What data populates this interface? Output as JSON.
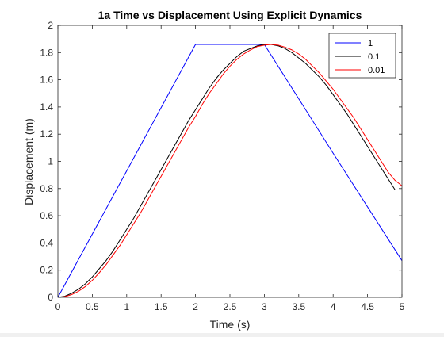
{
  "chart_data": {
    "type": "line",
    "title": "1a Time vs Displacement Using Explicit Dynamics",
    "xlabel": "Time (s)",
    "ylabel": "Displacement (m)",
    "xlim": [
      0,
      5
    ],
    "ylim": [
      0,
      2
    ],
    "xticks": [
      "0",
      "0.5",
      "1",
      "1.5",
      "2",
      "2.5",
      "3",
      "3.5",
      "4",
      "4.5",
      "5"
    ],
    "yticks": [
      "0",
      "0.2",
      "0.4",
      "0.6",
      "0.8",
      "1",
      "1.2",
      "1.4",
      "1.6",
      "1.8",
      "2"
    ],
    "grid": false,
    "box": true,
    "legend_position": "top-right",
    "series": [
      {
        "name": "1",
        "color": "#0000ff",
        "x": [
          0,
          1,
          2,
          3,
          4,
          5
        ],
        "y": [
          0,
          0.93,
          1.86,
          1.86,
          1.06,
          0.27
        ]
      },
      {
        "name": "0.1",
        "color": "#000000",
        "x": [
          0,
          0.1,
          0.2,
          0.3,
          0.4,
          0.5,
          0.6,
          0.7,
          0.8,
          0.9,
          1.0,
          1.1,
          1.2,
          1.3,
          1.4,
          1.5,
          1.6,
          1.7,
          1.8,
          1.9,
          2.0,
          2.1,
          2.2,
          2.3,
          2.4,
          2.5,
          2.6,
          2.7,
          2.8,
          2.9,
          3.0,
          3.1,
          3.2,
          3.3,
          3.4,
          3.5,
          3.6,
          3.7,
          3.8,
          3.9,
          4.0,
          4.1,
          4.2,
          4.3,
          4.4,
          4.5,
          4.6,
          4.7,
          4.8,
          4.9,
          5.0
        ],
        "y": [
          0,
          0.008,
          0.03,
          0.06,
          0.1,
          0.15,
          0.21,
          0.27,
          0.34,
          0.42,
          0.5,
          0.58,
          0.67,
          0.76,
          0.85,
          0.94,
          1.03,
          1.12,
          1.21,
          1.3,
          1.38,
          1.46,
          1.54,
          1.61,
          1.67,
          1.72,
          1.77,
          1.81,
          1.83,
          1.85,
          1.86,
          1.86,
          1.85,
          1.83,
          1.8,
          1.76,
          1.72,
          1.67,
          1.62,
          1.56,
          1.49,
          1.42,
          1.35,
          1.27,
          1.19,
          1.11,
          1.03,
          0.95,
          0.87,
          0.79,
          0.79
        ]
      },
      {
        "name": "0.01",
        "color": "#ff0000",
        "x": [
          0,
          0.1,
          0.2,
          0.3,
          0.4,
          0.5,
          0.6,
          0.7,
          0.8,
          0.9,
          1.0,
          1.1,
          1.2,
          1.3,
          1.4,
          1.5,
          1.6,
          1.7,
          1.8,
          1.9,
          2.0,
          2.1,
          2.2,
          2.3,
          2.4,
          2.5,
          2.6,
          2.7,
          2.8,
          2.9,
          3.0,
          3.1,
          3.2,
          3.3,
          3.4,
          3.5,
          3.6,
          3.7,
          3.8,
          3.9,
          4.0,
          4.1,
          4.2,
          4.3,
          4.4,
          4.5,
          4.6,
          4.7,
          4.8,
          4.9,
          5.0
        ],
        "y": [
          0,
          0.005,
          0.02,
          0.045,
          0.08,
          0.125,
          0.18,
          0.24,
          0.31,
          0.38,
          0.46,
          0.54,
          0.62,
          0.71,
          0.8,
          0.89,
          0.98,
          1.07,
          1.16,
          1.25,
          1.33,
          1.42,
          1.5,
          1.57,
          1.64,
          1.7,
          1.75,
          1.79,
          1.82,
          1.845,
          1.855,
          1.86,
          1.855,
          1.84,
          1.82,
          1.79,
          1.75,
          1.7,
          1.65,
          1.59,
          1.53,
          1.46,
          1.39,
          1.32,
          1.24,
          1.16,
          1.08,
          1.0,
          0.92,
          0.86,
          0.82
        ]
      }
    ]
  }
}
